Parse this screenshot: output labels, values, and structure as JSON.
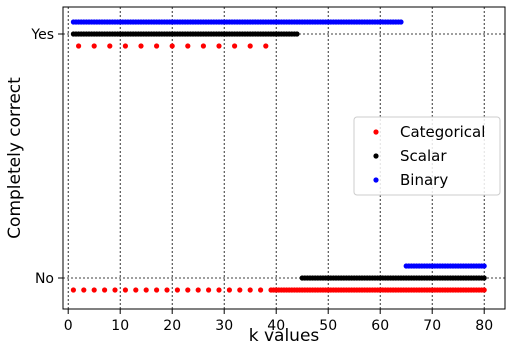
{
  "chart_data": {
    "type": "scatter",
    "xlabel": "k values",
    "ylabel": "Completely correct",
    "xlim": [
      -1,
      84
    ],
    "ylim": [
      "No",
      "Yes"
    ],
    "x_ticks": [
      0,
      10,
      20,
      30,
      40,
      50,
      60,
      70,
      80
    ],
    "y_ticks": [
      "No",
      "Yes"
    ],
    "grid": true,
    "grid_style": "dotted",
    "legend_position": "center-right",
    "series": [
      {
        "name": "Categorical",
        "color": "#ff0000",
        "row_offset": -1,
        "points": [
          {
            "start": 2,
            "end": 38,
            "step": 3,
            "value": "Yes"
          },
          {
            "start": 1,
            "end": 38,
            "step": 2,
            "value": "No"
          },
          {
            "start": 39,
            "end": 80,
            "step": 0.5,
            "value": "No"
          }
        ]
      },
      {
        "name": "Scalar",
        "color": "#000000",
        "row_offset": 0,
        "points": [
          {
            "start": 1,
            "end": 44,
            "step": 0.5,
            "value": "Yes"
          },
          {
            "start": 45,
            "end": 80,
            "step": 0.5,
            "value": "No"
          }
        ]
      },
      {
        "name": "Binary",
        "color": "#0000ff",
        "row_offset": 1,
        "points": [
          {
            "start": 1,
            "end": 64,
            "step": 0.5,
            "value": "Yes"
          },
          {
            "start": 65,
            "end": 80,
            "step": 0.5,
            "value": "No"
          }
        ]
      }
    ]
  }
}
